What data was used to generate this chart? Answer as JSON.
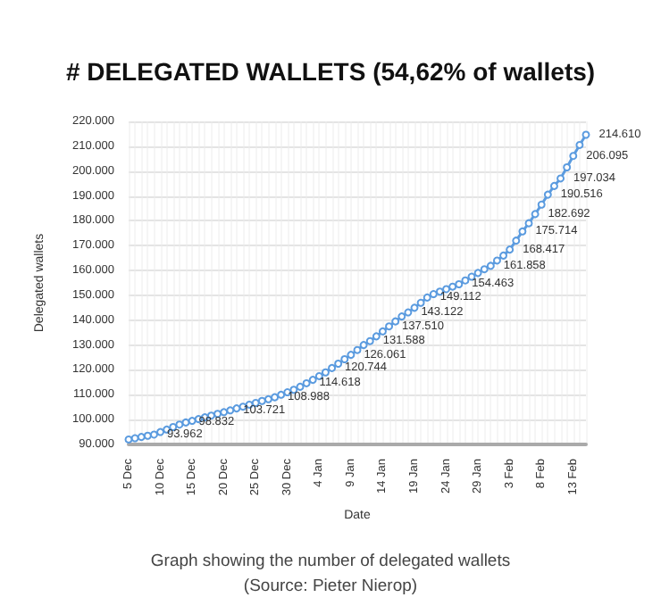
{
  "chart_data": {
    "type": "line",
    "title": "# DELEGATED WALLETS (54,62% of wallets)",
    "xlabel": "Date",
    "ylabel": "Delegated wallets",
    "categories": [
      "5 Dec",
      null,
      null,
      null,
      null,
      "10 Dec",
      null,
      null,
      null,
      null,
      "15 Dec",
      null,
      null,
      null,
      null,
      "20 Dec",
      null,
      null,
      null,
      null,
      "25 Dec",
      null,
      null,
      null,
      null,
      "30 Dec",
      null,
      null,
      null,
      null,
      "4 Jan",
      null,
      null,
      null,
      null,
      "9 Jan",
      null,
      null,
      null,
      null,
      "14 Jan",
      null,
      null,
      null,
      null,
      "19 Jan",
      null,
      null,
      null,
      null,
      "24 Jan",
      null,
      null,
      null,
      null,
      "29 Jan",
      null,
      null,
      null,
      null,
      "3 Feb",
      null,
      null,
      null,
      null,
      "8 Feb",
      null,
      null,
      null,
      null,
      "13 Feb",
      null,
      null
    ],
    "series": [
      {
        "color": "#5b9bdf",
        "values": [
          92000,
          92500,
          93000,
          93500,
          93962,
          95000,
          96000,
          97000,
          98000,
          98832,
          99500,
          100200,
          100900,
          101600,
          102300,
          103000,
          103721,
          104500,
          105200,
          106000,
          106700,
          107500,
          108200,
          108988,
          110000,
          111000,
          112000,
          113200,
          114618,
          116000,
          117500,
          119000,
          120744,
          122500,
          124300,
          126061,
          128000,
          130000,
          131588,
          133500,
          135500,
          137510,
          139500,
          141500,
          143122,
          145000,
          147000,
          149112,
          150500,
          151500,
          152500,
          153500,
          154463,
          156000,
          157500,
          159000,
          160500,
          161858,
          164000,
          166000,
          168417,
          172000,
          175714,
          179000,
          182692,
          186500,
          190516,
          194000,
          197034,
          201500,
          206095,
          210500,
          214610
        ],
        "value_labels": [
          null,
          null,
          null,
          null,
          "93.962",
          null,
          null,
          null,
          null,
          "98.832",
          null,
          null,
          null,
          null,
          null,
          null,
          "103.721",
          null,
          null,
          null,
          null,
          null,
          null,
          "108.988",
          null,
          null,
          null,
          null,
          "114.618",
          null,
          null,
          null,
          "120.744",
          null,
          null,
          "126.061",
          null,
          null,
          "131.588",
          null,
          null,
          "137.510",
          null,
          null,
          "143.122",
          null,
          null,
          "149.112",
          null,
          null,
          null,
          null,
          "154.463",
          null,
          null,
          null,
          null,
          "161.858",
          null,
          null,
          "168.417",
          null,
          "175.714",
          null,
          "182.692",
          null,
          "190.516",
          null,
          "197.034",
          null,
          "206.095",
          null,
          "214.610"
        ]
      }
    ],
    "ylim": [
      90000,
      220000
    ],
    "yticks": [
      {
        "value": 90000,
        "label": "90.000"
      },
      {
        "value": 100000,
        "label": "100.000"
      },
      {
        "value": 110000,
        "label": "110.000"
      },
      {
        "value": 120000,
        "label": "120.000"
      },
      {
        "value": 130000,
        "label": "130.000"
      },
      {
        "value": 140000,
        "label": "140.000"
      },
      {
        "value": 150000,
        "label": "150.000"
      },
      {
        "value": 160000,
        "label": "160.000"
      },
      {
        "value": 170000,
        "label": "170.000"
      },
      {
        "value": 180000,
        "label": "180.000"
      },
      {
        "value": 190000,
        "label": "190.000"
      },
      {
        "value": 200000,
        "label": "200.000"
      },
      {
        "value": 210000,
        "label": "210.000"
      },
      {
        "value": 220000,
        "label": "220.000"
      }
    ],
    "grid": true,
    "marker": "circle",
    "line_style": "solid",
    "annotations": [
      "Graph showing the number of delegated wallets",
      "(Source: Pieter Nierop)"
    ]
  }
}
